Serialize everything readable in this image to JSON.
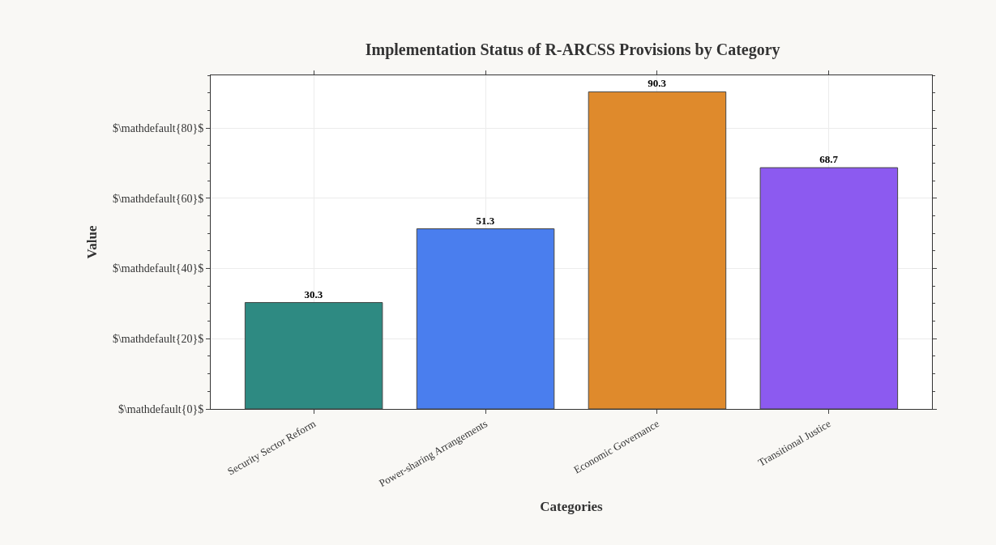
{
  "chart_data": {
    "type": "bar",
    "title": "Implementation Status of R-ARCSS Provisions by Category",
    "xlabel": "Categories",
    "ylabel": "Value",
    "categories": [
      "Security Sector Reform",
      "Power-sharing Arrangements",
      "Economic Governance",
      "Transitional Justice"
    ],
    "values": [
      30.3,
      51.3,
      90.3,
      68.7
    ],
    "colors": [
      "#2e8a82",
      "#4a7eee",
      "#df8a2c",
      "#8c5af0"
    ],
    "ylim": [
      0,
      95
    ],
    "yticks": [
      {
        "value": 0,
        "label": "$\\mathdefault{0}$"
      },
      {
        "value": 20,
        "label": "$\\mathdefault{20}$"
      },
      {
        "value": 40,
        "label": "$\\mathdefault{40}$"
      },
      {
        "value": 60,
        "label": "$\\mathdefault{60}$"
      },
      {
        "value": 80,
        "label": "$\\mathdefault{80}$"
      }
    ],
    "data_labels": true,
    "grid": true
  }
}
